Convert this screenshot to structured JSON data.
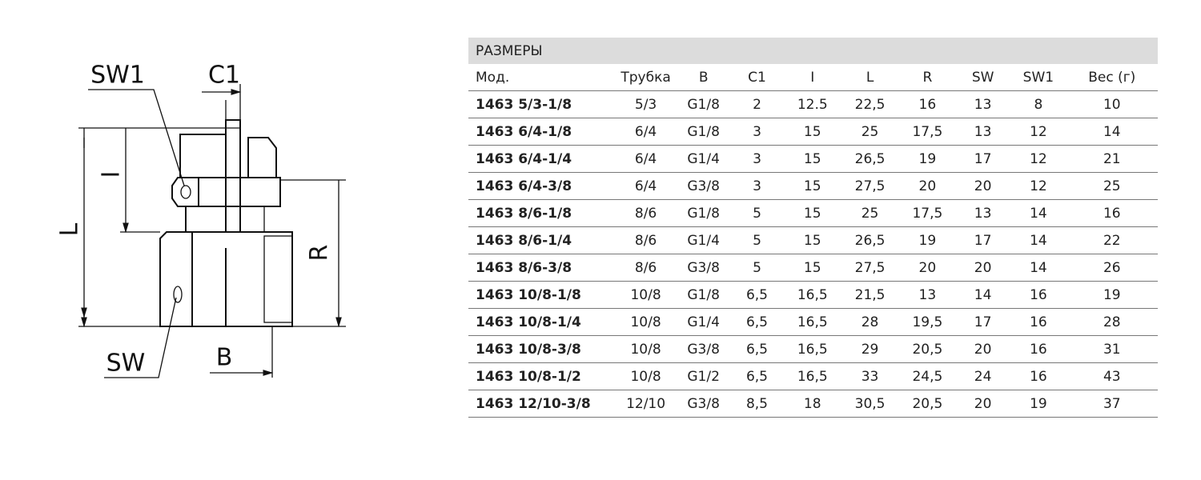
{
  "drawing": {
    "labels": {
      "sw1": "SW1",
      "c1": "C1",
      "i": "I",
      "l": "L",
      "r": "R",
      "sw": "SW",
      "b": "B"
    }
  },
  "table": {
    "title": "РАЗМЕРЫ",
    "headers": [
      "Мод.",
      "Трубка",
      "B",
      "C1",
      "I",
      "L",
      "R",
      "SW",
      "SW1",
      "Вес (г)"
    ],
    "rows": [
      [
        "1463 5/3-1/8",
        "5/3",
        "G1/8",
        "2",
        "12.5",
        "22,5",
        "16",
        "13",
        "8",
        "10"
      ],
      [
        "1463 6/4-1/8",
        "6/4",
        "G1/8",
        "3",
        "15",
        "25",
        "17,5",
        "13",
        "12",
        "14"
      ],
      [
        "1463 6/4-1/4",
        "6/4",
        "G1/4",
        "3",
        "15",
        "26,5",
        "19",
        "17",
        "12",
        "21"
      ],
      [
        "1463 6/4-3/8",
        "6/4",
        "G3/8",
        "3",
        "15",
        "27,5",
        "20",
        "20",
        "12",
        "25"
      ],
      [
        "1463 8/6-1/8",
        "8/6",
        "G1/8",
        "5",
        "15",
        "25",
        "17,5",
        "13",
        "14",
        "16"
      ],
      [
        "1463 8/6-1/4",
        "8/6",
        "G1/4",
        "5",
        "15",
        "26,5",
        "19",
        "17",
        "14",
        "22"
      ],
      [
        "1463 8/6-3/8",
        "8/6",
        "G3/8",
        "5",
        "15",
        "27,5",
        "20",
        "20",
        "14",
        "26"
      ],
      [
        "1463 10/8-1/8",
        "10/8",
        "G1/8",
        "6,5",
        "16,5",
        "21,5",
        "13",
        "14",
        "16",
        "19"
      ],
      [
        "1463 10/8-1/4",
        "10/8",
        "G1/4",
        "6,5",
        "16,5",
        "28",
        "19,5",
        "17",
        "16",
        "28"
      ],
      [
        "1463 10/8-3/8",
        "10/8",
        "G3/8",
        "6,5",
        "16,5",
        "29",
        "20,5",
        "20",
        "16",
        "31"
      ],
      [
        "1463 10/8-1/2",
        "10/8",
        "G1/2",
        "6,5",
        "16,5",
        "33",
        "24,5",
        "24",
        "16",
        "43"
      ],
      [
        "1463 12/10-3/8",
        "12/10",
        "G3/8",
        "8,5",
        "18",
        "30,5",
        "20,5",
        "20",
        "19",
        "37"
      ]
    ]
  }
}
